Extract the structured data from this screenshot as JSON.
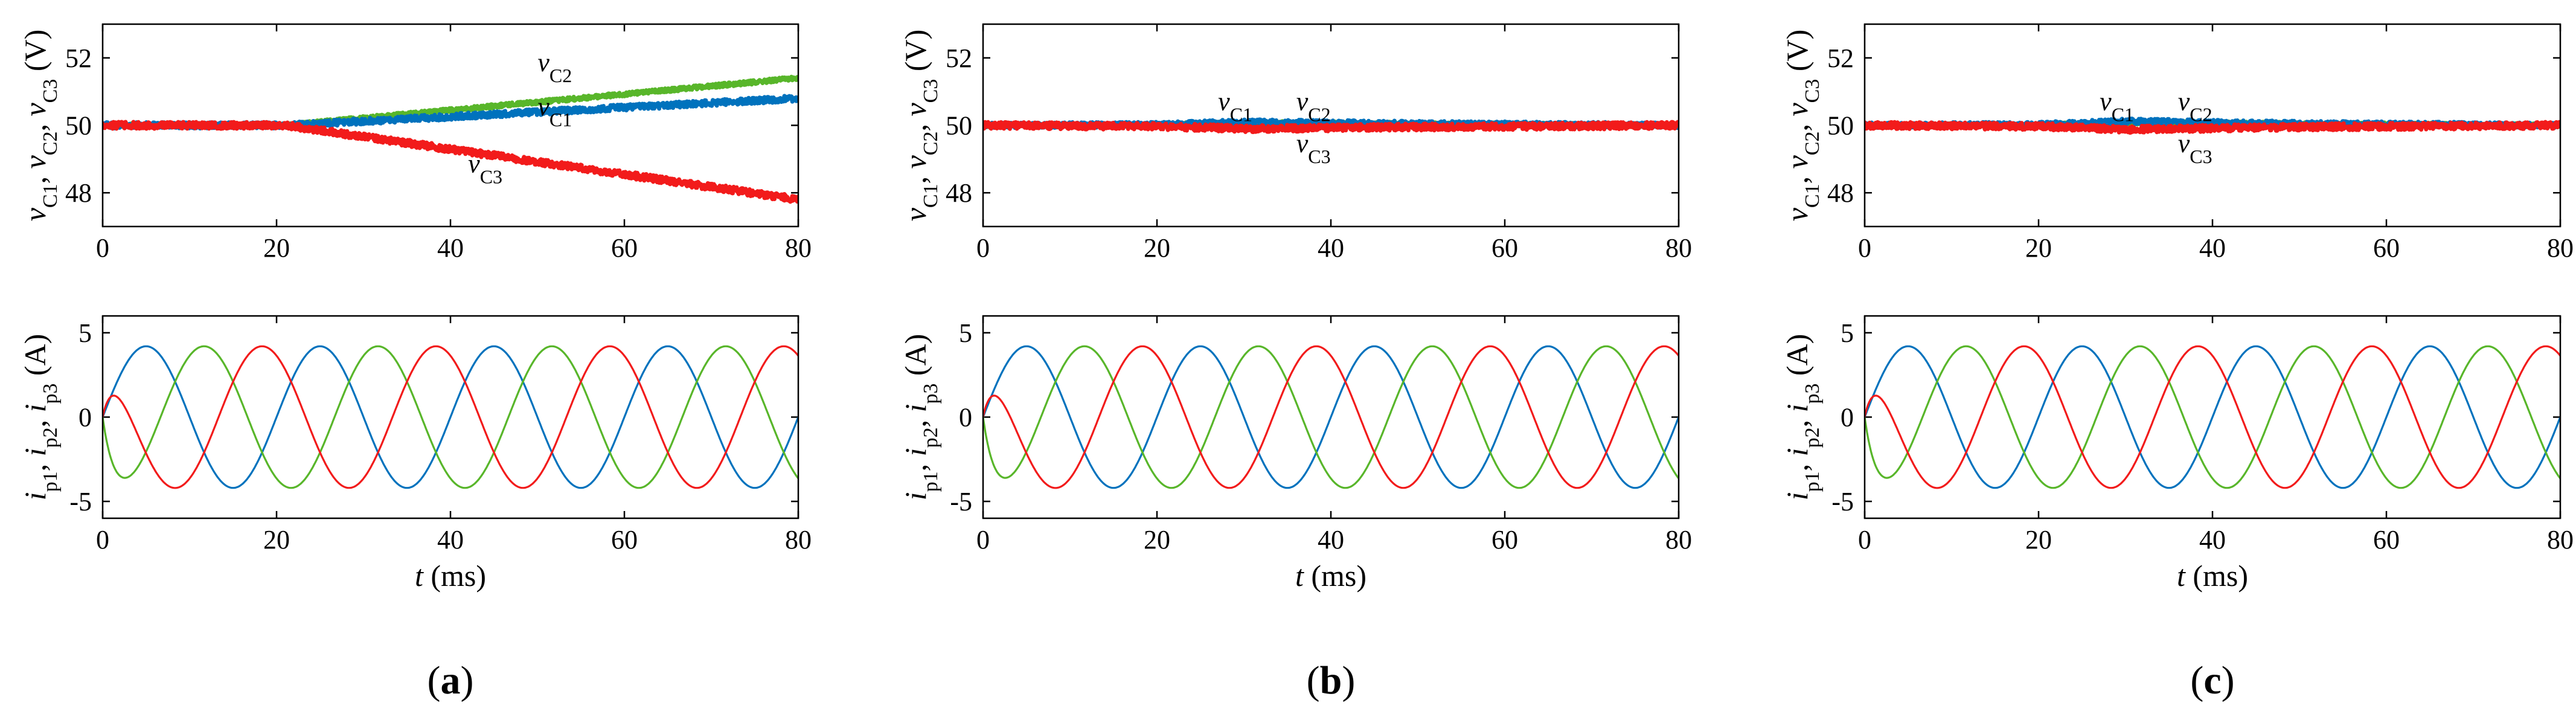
{
  "colors": {
    "c1": "#0072BD",
    "c2": "#58B62A",
    "c3": "#F21B1B",
    "axis": "#000000"
  },
  "chart_data": [
    {
      "type": "line",
      "panel": "(a)",
      "panel_letter": "a",
      "plots": [
        {
          "kind": "voltage",
          "xlabel": "",
          "ylabel_plain": "vC1, vC2, vC3 (V)",
          "xlim": [
            0,
            80
          ],
          "ylim": [
            47,
            53
          ],
          "xticks": [
            0,
            20,
            40,
            60,
            80
          ],
          "yticks": [
            48,
            50,
            52
          ],
          "series": [
            {
              "name": "vC1",
              "key": "c1",
              "x": [
                0,
                20,
                21,
                80
              ],
              "y": [
                50,
                50,
                50,
                50.8
              ],
              "band": 0.18
            },
            {
              "name": "vC2",
              "key": "c2",
              "x": [
                0,
                20,
                21,
                80
              ],
              "y": [
                50,
                50,
                50,
                51.4
              ],
              "band": 0.12
            },
            {
              "name": "vC3",
              "key": "c3",
              "x": [
                0,
                20,
                21,
                80
              ],
              "y": [
                50,
                50,
                50,
                47.8
              ],
              "band": 0.2
            }
          ],
          "annotations": [
            {
              "sym": "v",
              "sub": "C2",
              "x": 52,
              "y": 51.6
            },
            {
              "sym": "v",
              "sub": "C1",
              "x": 52,
              "y": 50.3
            },
            {
              "sym": "v",
              "sub": "C3",
              "x": 44,
              "y": 48.6
            }
          ]
        },
        {
          "kind": "current",
          "xlabel": "t (ms)",
          "ylabel_plain": "ip1, ip2, ip3 (A)",
          "xlim": [
            0,
            80
          ],
          "ylim": [
            -6,
            6
          ],
          "xticks": [
            0,
            20,
            40,
            60,
            80
          ],
          "yticks": [
            -5,
            0,
            5
          ],
          "series": [
            {
              "name": "ip1",
              "key": "c1",
              "amplitude": 4.2,
              "frequency_hz": 50,
              "phase_deg": 0
            },
            {
              "name": "ip2",
              "key": "c2",
              "amplitude": 4.2,
              "frequency_hz": 50,
              "phase_deg": -120
            },
            {
              "name": "ip3",
              "key": "c3",
              "amplitude": 4.2,
              "frequency_hz": 50,
              "phase_deg": 120
            }
          ]
        }
      ]
    },
    {
      "type": "line",
      "panel": "(b)",
      "panel_letter": "b",
      "plots": [
        {
          "kind": "voltage",
          "xlabel": "",
          "ylabel_plain": "vC1, vC2, vC3 (V)",
          "xlim": [
            0,
            80
          ],
          "ylim": [
            47,
            53
          ],
          "xticks": [
            0,
            20,
            40,
            60,
            80
          ],
          "yticks": [
            48,
            50,
            52
          ],
          "series": [
            {
              "name": "vC1",
              "key": "c1",
              "x": [
                0,
                20,
                30,
                50,
                80
              ],
              "y": [
                50,
                50.02,
                50.1,
                50.05,
                50
              ],
              "band": 0.16
            },
            {
              "name": "vC2",
              "key": "c2",
              "x": [
                0,
                20,
                30,
                50,
                80
              ],
              "y": [
                50,
                50.02,
                50.08,
                50.05,
                50
              ],
              "band": 0.1
            },
            {
              "name": "vC3",
              "key": "c3",
              "x": [
                0,
                20,
                30,
                50,
                80
              ],
              "y": [
                50,
                49.97,
                49.9,
                49.95,
                50
              ],
              "band": 0.2
            }
          ],
          "annotations": [
            {
              "sym": "v",
              "sub": "C1",
              "x": 29,
              "y": 50.45
            },
            {
              "sym": "v",
              "sub": "C2",
              "x": 38,
              "y": 50.45
            },
            {
              "sym": "v",
              "sub": "C3",
              "x": 38,
              "y": 49.2
            }
          ]
        },
        {
          "kind": "current",
          "xlabel": "t (ms)",
          "ylabel_plain": "ip1, ip2, ip3 (A)",
          "xlim": [
            0,
            80
          ],
          "ylim": [
            -6,
            6
          ],
          "xticks": [
            0,
            20,
            40,
            60,
            80
          ],
          "yticks": [
            -5,
            0,
            5
          ],
          "series": [
            {
              "name": "ip1",
              "key": "c1",
              "amplitude": 4.2,
              "frequency_hz": 50,
              "phase_deg": 0
            },
            {
              "name": "ip2",
              "key": "c2",
              "amplitude": 4.2,
              "frequency_hz": 50,
              "phase_deg": -120
            },
            {
              "name": "ip3",
              "key": "c3",
              "amplitude": 4.2,
              "frequency_hz": 50,
              "phase_deg": 120
            }
          ]
        }
      ]
    },
    {
      "type": "line",
      "panel": "(c)",
      "panel_letter": "c",
      "plots": [
        {
          "kind": "voltage",
          "xlabel": "",
          "ylabel_plain": "vC1, vC2, vC3 (V)",
          "xlim": [
            0,
            80
          ],
          "ylim": [
            47,
            53
          ],
          "xticks": [
            0,
            20,
            40,
            60,
            80
          ],
          "yticks": [
            48,
            50,
            52
          ],
          "series": [
            {
              "name": "vC1",
              "key": "c1",
              "x": [
                0,
                20,
                30,
                50,
                80
              ],
              "y": [
                50,
                50.02,
                50.12,
                50.05,
                50
              ],
              "band": 0.16
            },
            {
              "name": "vC2",
              "key": "c2",
              "x": [
                0,
                20,
                30,
                50,
                80
              ],
              "y": [
                50,
                50.02,
                50.08,
                50.05,
                50
              ],
              "band": 0.1
            },
            {
              "name": "vC3",
              "key": "c3",
              "x": [
                0,
                20,
                30,
                50,
                80
              ],
              "y": [
                50,
                49.97,
                49.88,
                49.95,
                50
              ],
              "band": 0.2
            }
          ],
          "annotations": [
            {
              "sym": "v",
              "sub": "C1",
              "x": 29,
              "y": 50.45
            },
            {
              "sym": "v",
              "sub": "C2",
              "x": 38,
              "y": 50.45
            },
            {
              "sym": "v",
              "sub": "C3",
              "x": 38,
              "y": 49.2
            }
          ]
        },
        {
          "kind": "current",
          "xlabel": "t (ms)",
          "ylabel_plain": "ip1, ip2, ip3 (A)",
          "xlim": [
            0,
            80
          ],
          "ylim": [
            -6,
            6
          ],
          "xticks": [
            0,
            20,
            40,
            60,
            80
          ],
          "yticks": [
            -5,
            0,
            5
          ],
          "series": [
            {
              "name": "ip1",
              "key": "c1",
              "amplitude": 4.2,
              "frequency_hz": 50,
              "phase_deg": 0
            },
            {
              "name": "ip2",
              "key": "c2",
              "amplitude": 4.2,
              "frequency_hz": 50,
              "phase_deg": -120
            },
            {
              "name": "ip3",
              "key": "c3",
              "amplitude": 4.2,
              "frequency_hz": 50,
              "phase_deg": 120
            }
          ]
        }
      ]
    }
  ]
}
